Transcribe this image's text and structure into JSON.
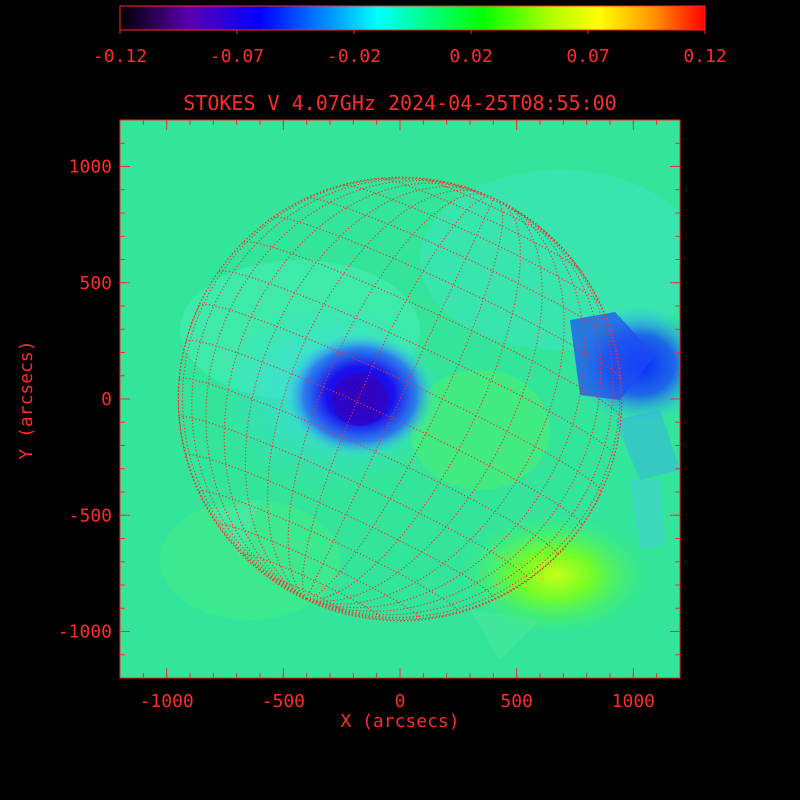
{
  "title": "STOKES V 4.07GHz 2024-04-25T08:55:00",
  "colorbar": {
    "tick_labels": [
      "-0.12",
      "-0.07",
      "-0.02",
      "0.02",
      "0.07",
      "0.12"
    ],
    "vmin": -0.12,
    "vmax": 0.12,
    "colormap": "rainbow"
  },
  "axes": {
    "xlabel": "X (arcsecs)",
    "ylabel": "Y (arcsecs)",
    "x_ticks": [
      "-1000",
      "-500",
      "0",
      "500",
      "1000"
    ],
    "y_ticks": [
      "1000",
      "500",
      "0",
      "-500",
      "-1000"
    ],
    "xlim": [
      -1200,
      1200
    ],
    "ylim": [
      -1200,
      1200
    ]
  },
  "colors": {
    "text": "#ff2a2a",
    "background": "#000000",
    "map_base": "#33e59a",
    "grid": "#ff2a2a"
  },
  "features": {
    "solar_disk_radius_arcsec": 950,
    "negative_region_center": [
      -150,
      0
    ],
    "positive_region_center": [
      600,
      -700
    ],
    "limb_negative_region_center": [
      1100,
      150
    ]
  }
}
